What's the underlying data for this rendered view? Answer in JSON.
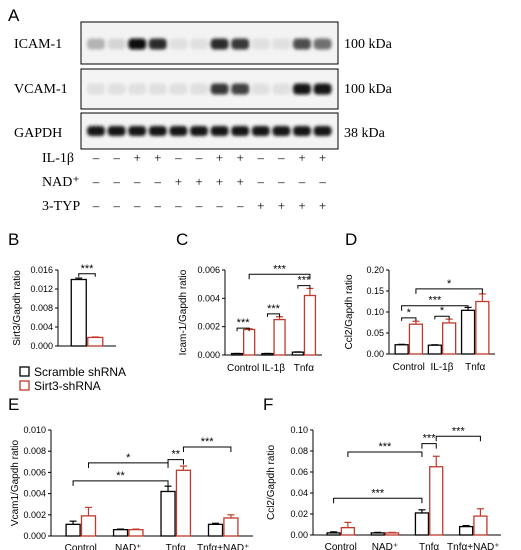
{
  "panels": {
    "A": "A",
    "B": "B",
    "C": "C",
    "D": "D",
    "E": "E",
    "F": "F"
  },
  "western_blot": {
    "rows": [
      {
        "name": "ICAM-1",
        "mw": "100 kDa",
        "intensity": [
          0.25,
          0.1,
          1.0,
          0.85,
          0.05,
          0.05,
          0.85,
          0.8,
          0.05,
          0.05,
          0.7,
          0.55
        ]
      },
      {
        "name": "VCAM-1",
        "mw": "100 kDa",
        "intensity": [
          0.05,
          0.05,
          0.05,
          0.05,
          0.05,
          0.05,
          0.8,
          0.75,
          0.05,
          0.05,
          0.95,
          0.95
        ]
      },
      {
        "name": "GAPDH",
        "mw": "38 kDa",
        "intensity": [
          0.95,
          0.95,
          0.95,
          0.95,
          0.95,
          0.95,
          0.95,
          0.95,
          0.95,
          0.95,
          0.95,
          0.95
        ]
      }
    ],
    "treatments": [
      {
        "name": "IL-1β",
        "signs": [
          "–",
          "–",
          "+",
          "+",
          "–",
          "–",
          "+",
          "+",
          "–",
          "–",
          "+",
          "+"
        ]
      },
      {
        "name": "NAD⁺",
        "signs": [
          "–",
          "–",
          "–",
          "–",
          "+",
          "+",
          "+",
          "+",
          "–",
          "–",
          "–",
          "–"
        ]
      },
      {
        "name": "3-TYP",
        "signs": [
          "–",
          "–",
          "–",
          "–",
          "–",
          "–",
          "–",
          "–",
          "+",
          "+",
          "+",
          "+"
        ]
      }
    ]
  },
  "legend": {
    "items": [
      {
        "label": "Scramble shRNA",
        "color": "#000000"
      },
      {
        "label": "Sirt3-shRNA",
        "color": "#c0392b"
      }
    ]
  },
  "chart_data": [
    {
      "panel": "B",
      "type": "bar",
      "categories": [
        ""
      ],
      "series": [
        {
          "name": "Scramble shRNA",
          "values": [
            0.014
          ],
          "errors": [
            0.0003
          ]
        },
        {
          "name": "Sirt3-shRNA",
          "values": [
            0.0018
          ],
          "errors": [
            0.0001
          ]
        }
      ],
      "ylabel": "Sirt3/Gapdh ratio",
      "ylim": [
        0,
        0.016
      ],
      "yticks": [
        "0.000",
        "0.004",
        "0.008",
        "0.012",
        "0.016"
      ],
      "annotations": [
        "***"
      ]
    },
    {
      "panel": "C",
      "type": "bar",
      "categories": [
        "Control",
        "IL-1β",
        "Tnfα"
      ],
      "series": [
        {
          "name": "Scramble shRNA",
          "values": [
            0.0001,
            0.0001,
            0.0002
          ],
          "errors": [
            1e-05,
            1e-05,
            2e-05
          ]
        },
        {
          "name": "Sirt3-shRNA",
          "values": [
            0.0018,
            0.0025,
            0.0042
          ],
          "errors": [
            5e-05,
            0.0002,
            0.0005
          ]
        }
      ],
      "ylabel": "Icam-1/Gapdh ratio",
      "ylim": [
        0,
        0.006
      ],
      "yticks": [
        "0.000",
        "0.002",
        "0.004",
        "0.006"
      ],
      "annotations": [
        "***",
        "***",
        "***",
        "***"
      ]
    },
    {
      "panel": "D",
      "type": "bar",
      "categories": [
        "Control",
        "IL-1β",
        "Tnfα"
      ],
      "series": [
        {
          "name": "Scramble shRNA",
          "values": [
            0.022,
            0.021,
            0.104
          ],
          "errors": [
            0.001,
            0.001,
            0.007
          ]
        },
        {
          "name": "Sirt3-shRNA",
          "values": [
            0.071,
            0.074,
            0.125
          ],
          "errors": [
            0.007,
            0.009,
            0.018
          ]
        }
      ],
      "ylabel": "Ccl2/Gapdh ratio",
      "ylim": [
        0,
        0.2
      ],
      "yticks": [
        "0.00",
        "0.05",
        "0.10",
        "0.15",
        "0.20"
      ],
      "annotations": [
        "*",
        "*",
        "***",
        "*"
      ]
    },
    {
      "panel": "E",
      "type": "bar",
      "categories": [
        "Control",
        "NAD⁺",
        "Tnfα",
        "Tnfα+NAD⁺"
      ],
      "series": [
        {
          "name": "Scramble shRNA",
          "values": [
            0.0011,
            0.0006,
            0.0042,
            0.0011
          ],
          "errors": [
            0.0003,
            5e-05,
            0.0005,
            0.0001
          ]
        },
        {
          "name": "Sirt3-shRNA",
          "values": [
            0.0019,
            0.0006,
            0.0062,
            0.0017
          ],
          "errors": [
            0.0008,
            5e-05,
            0.0004,
            0.0003
          ]
        }
      ],
      "ylabel": "Vcam1/Gapdh ratio",
      "ylim": [
        0,
        0.01
      ],
      "yticks": [
        "0.000",
        "0.002",
        "0.004",
        "0.006",
        "0.008",
        "0.010"
      ],
      "annotations": [
        "**",
        "*",
        "**",
        "***"
      ]
    },
    {
      "panel": "F",
      "type": "bar",
      "categories": [
        "Control",
        "NAD⁺",
        "Tnfα",
        "Tnfα+NAD⁺"
      ],
      "series": [
        {
          "name": "Scramble shRNA",
          "values": [
            0.002,
            0.002,
            0.021,
            0.008
          ],
          "errors": [
            0.001,
            0.0005,
            0.003,
            0.001
          ]
        },
        {
          "name": "Sirt3-shRNA",
          "values": [
            0.007,
            0.002,
            0.065,
            0.018
          ],
          "errors": [
            0.005,
            0.0005,
            0.01,
            0.007
          ]
        }
      ],
      "ylabel": "Ccl2/Gapdh ratio",
      "ylim": [
        0,
        0.1
      ],
      "yticks": [
        "0.00",
        "0.02",
        "0.04",
        "0.06",
        "0.08",
        "0.10"
      ],
      "annotations": [
        "***",
        "***",
        "***",
        "***"
      ]
    }
  ]
}
